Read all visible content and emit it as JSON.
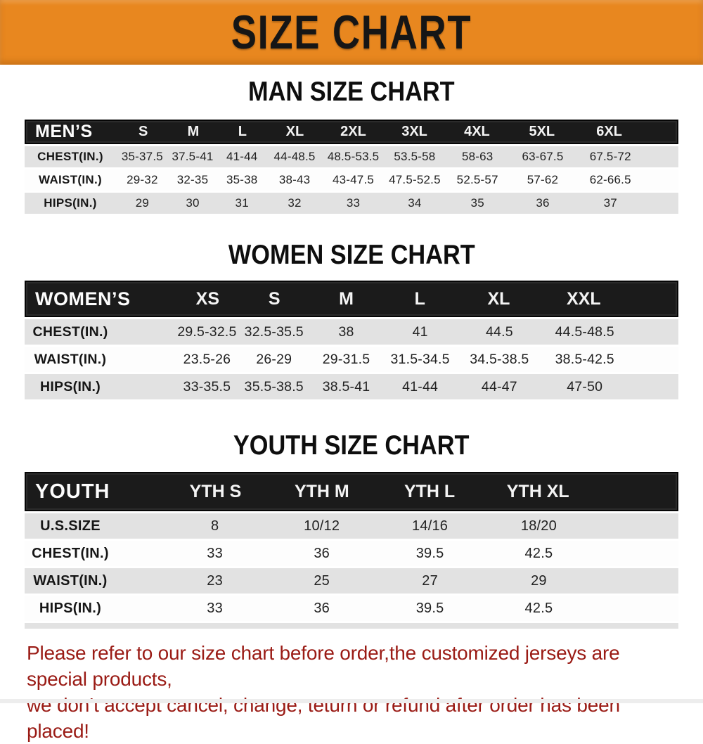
{
  "banner": {
    "title": "SIZE CHART"
  },
  "sections": [
    {
      "title": "MAN SIZE CHART",
      "header_label": "MEN’S",
      "columns": [
        "S",
        "M",
        "L",
        "XL",
        "2XL",
        "3XL",
        "4XL",
        "5XL",
        "6XL"
      ],
      "rows": [
        {
          "label": "CHEST(IN.)",
          "values": [
            "35-37.5",
            "37.5-41",
            "41-44",
            "44-48.5",
            "48.5-53.5",
            "53.5-58",
            "58-63",
            "63-67.5",
            "67.5-72"
          ]
        },
        {
          "label": "WAIST(IN.)",
          "values": [
            "29-32",
            "32-35",
            "35-38",
            "38-43",
            "43-47.5",
            "47.5-52.5",
            "52.5-57",
            "57-62",
            "62-66.5"
          ]
        },
        {
          "label": "HIPS(IN.)",
          "values": [
            "29",
            "30",
            "31",
            "32",
            "33",
            "34",
            "35",
            "36",
            "37"
          ]
        }
      ]
    },
    {
      "title": "WOMEN SIZE CHART",
      "header_label": "WOMEN’S",
      "columns": [
        "XS",
        "S",
        "M",
        "L",
        "XL",
        "XXL"
      ],
      "rows": [
        {
          "label": "CHEST(IN.)",
          "values": [
            "29.5-32.5",
            "32.5-35.5",
            "38",
            "41",
            "44.5",
            "44.5-48.5"
          ]
        },
        {
          "label": "WAIST(IN.)",
          "values": [
            "23.5-26",
            "26-29",
            "29-31.5",
            "31.5-34.5",
            "34.5-38.5",
            "38.5-42.5"
          ]
        },
        {
          "label": "HIPS(IN.)",
          "values": [
            "33-35.5",
            "35.5-38.5",
            "38.5-41",
            "41-44",
            "44-47",
            "47-50"
          ]
        }
      ]
    },
    {
      "title": "YOUTH SIZE CHART",
      "header_label": "YOUTH",
      "columns": [
        "YTH S",
        "YTH M",
        "YTH L",
        "YTH XL"
      ],
      "rows": [
        {
          "label": "U.S.SIZE",
          "values": [
            "8",
            "10/12",
            "14/16",
            "18/20"
          ]
        },
        {
          "label": "CHEST(IN.)",
          "values": [
            "33",
            "36",
            "39.5",
            "42.5"
          ]
        },
        {
          "label": "WAIST(IN.)",
          "values": [
            "23",
            "25",
            "27",
            "29"
          ]
        },
        {
          "label": "HIPS(IN.)",
          "values": [
            "33",
            "36",
            "39.5",
            "42.5"
          ]
        }
      ]
    }
  ],
  "footer": {
    "line1": "Please refer to our size chart before order,the customized jerseys are special products,",
    "line2": "we don’t accept cancel, change, teturn or refund after order has been placed!"
  },
  "colors": {
    "banner_bg": "#E8871F",
    "header_bar": "#1B1B1B",
    "row_alt": "#E2E2E2",
    "footer_text": "#9A1B15",
    "title_text": "#0E0E0E"
  }
}
